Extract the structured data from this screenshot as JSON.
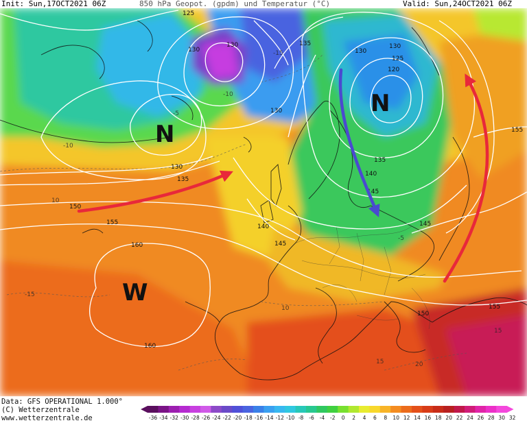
{
  "header": {
    "init": "Init: Sun,17OCT2021 06Z",
    "title": "850 hPa Geopot. (gpdm) und Temperatur (°C)",
    "valid": "Valid: Sun,24OCT2021 06Z"
  },
  "footer": {
    "data_line": "Data: GFS OPERATIONAL 1.000°",
    "copyright": "(C) Wetterzentrale",
    "url": "www.wetterzentrale.de"
  },
  "map_labels": {
    "low_west": "N",
    "low_east": "N",
    "high": "W",
    "geopot": [
      "125",
      "130",
      "130",
      "135",
      "130",
      "130",
      "125",
      "120",
      "135",
      "140",
      "145",
      "145",
      "155",
      "130",
      "135",
      "150",
      "155",
      "140",
      "145",
      "160",
      "160",
      "150",
      "155",
      "150"
    ],
    "temps": [
      "-15",
      "-10",
      "-5",
      "-10",
      "10",
      "-15",
      "15",
      "10",
      "15",
      "20",
      "-5"
    ]
  },
  "color_scale": {
    "ticks": [
      "-36",
      "-34",
      "-32",
      "-30",
      "-28",
      "-26",
      "-24",
      "-22",
      "-20",
      "-18",
      "-16",
      "-14",
      "-12",
      "-10",
      "-8",
      "-6",
      "-4",
      "-2",
      "0",
      "2",
      "4",
      "6",
      "8",
      "10",
      "12",
      "14",
      "16",
      "18",
      "20",
      "22",
      "24",
      "26",
      "28",
      "30",
      "32"
    ],
    "colors": [
      "#5a0f5e",
      "#7a1486",
      "#9c1fb0",
      "#b52ad0",
      "#c840e0",
      "#d05ae8",
      "#8c4ac8",
      "#6a4ac8",
      "#5050d8",
      "#4a64e0",
      "#3a80e8",
      "#3aa0f0",
      "#38b8f0",
      "#30c8e0",
      "#28c8b8",
      "#28c890",
      "#30c860",
      "#40d040",
      "#78e030",
      "#b0e830",
      "#e8ec30",
      "#f8d82c",
      "#f8b428",
      "#f48c20",
      "#ec6c1c",
      "#e4501a",
      "#d83c18",
      "#c82c18",
      "#b82020",
      "#c0184a",
      "#d01c78",
      "#e024a8",
      "#ec30c8",
      "#f448dc"
    ]
  },
  "colors": {
    "arrow_red": "#e8283a",
    "arrow_blue": "#4a4ad0",
    "contour": "#ffffff"
  }
}
